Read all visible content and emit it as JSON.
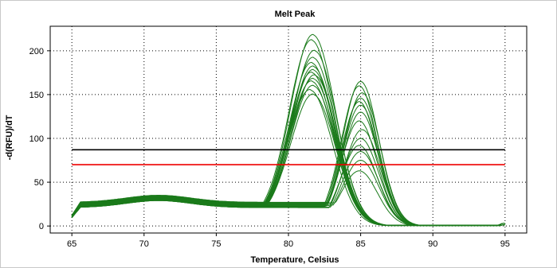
{
  "chart_data": {
    "type": "line",
    "title": "Melt Peak",
    "xlabel": "Temperature, Celsius",
    "ylabel": "-d(RFU)/dT",
    "xlim": [
      63.5,
      96.5
    ],
    "ylim": [
      -8,
      228
    ],
    "xticks": [
      65,
      70,
      75,
      80,
      85,
      90,
      95
    ],
    "yticks": [
      0,
      50,
      100,
      150,
      200
    ],
    "grid": true,
    "colors": {
      "series": "#1a7a1a",
      "threshold_black": "#000000",
      "threshold_red": "#ee0000"
    },
    "thresholds": [
      {
        "color": "#000000",
        "y": 87
      },
      {
        "color": "#ee0000",
        "y": 70
      }
    ],
    "series": [
      {
        "group": "A",
        "peak_x": 81.7,
        "peak_y": 218
      },
      {
        "group": "A",
        "peak_x": 81.6,
        "peak_y": 212
      },
      {
        "group": "A",
        "peak_x": 81.8,
        "peak_y": 200
      },
      {
        "group": "A",
        "peak_x": 81.7,
        "peak_y": 192
      },
      {
        "group": "A",
        "peak_x": 81.6,
        "peak_y": 186
      },
      {
        "group": "A",
        "peak_x": 81.7,
        "peak_y": 182
      },
      {
        "group": "A",
        "peak_x": 81.7,
        "peak_y": 178
      },
      {
        "group": "A",
        "peak_x": 81.6,
        "peak_y": 175
      },
      {
        "group": "A",
        "peak_x": 81.8,
        "peak_y": 172
      },
      {
        "group": "A",
        "peak_x": 81.7,
        "peak_y": 168
      },
      {
        "group": "A",
        "peak_x": 81.6,
        "peak_y": 165
      },
      {
        "group": "A",
        "peak_x": 81.7,
        "peak_y": 160
      },
      {
        "group": "A",
        "peak_x": 81.5,
        "peak_y": 155
      },
      {
        "group": "A",
        "peak_x": 81.7,
        "peak_y": 150
      },
      {
        "group": "B",
        "peak_x": 85.0,
        "peak_y": 165
      },
      {
        "group": "B",
        "peak_x": 84.9,
        "peak_y": 160
      },
      {
        "group": "B",
        "peak_x": 85.1,
        "peak_y": 152
      },
      {
        "group": "B",
        "peak_x": 85.0,
        "peak_y": 146
      },
      {
        "group": "B",
        "peak_x": 84.9,
        "peak_y": 142
      },
      {
        "group": "B",
        "peak_x": 85.0,
        "peak_y": 138
      },
      {
        "group": "B",
        "peak_x": 85.0,
        "peak_y": 130
      },
      {
        "group": "B",
        "peak_x": 84.9,
        "peak_y": 120
      },
      {
        "group": "B",
        "peak_x": 85.1,
        "peak_y": 110
      },
      {
        "group": "B",
        "peak_x": 85.0,
        "peak_y": 100
      },
      {
        "group": "B",
        "peak_x": 84.9,
        "peak_y": 92
      },
      {
        "group": "B",
        "peak_x": 85.0,
        "peak_y": 85
      },
      {
        "group": "B",
        "peak_x": 85.0,
        "peak_y": 75
      },
      {
        "group": "B",
        "peak_x": 84.9,
        "peak_y": 63
      }
    ]
  }
}
